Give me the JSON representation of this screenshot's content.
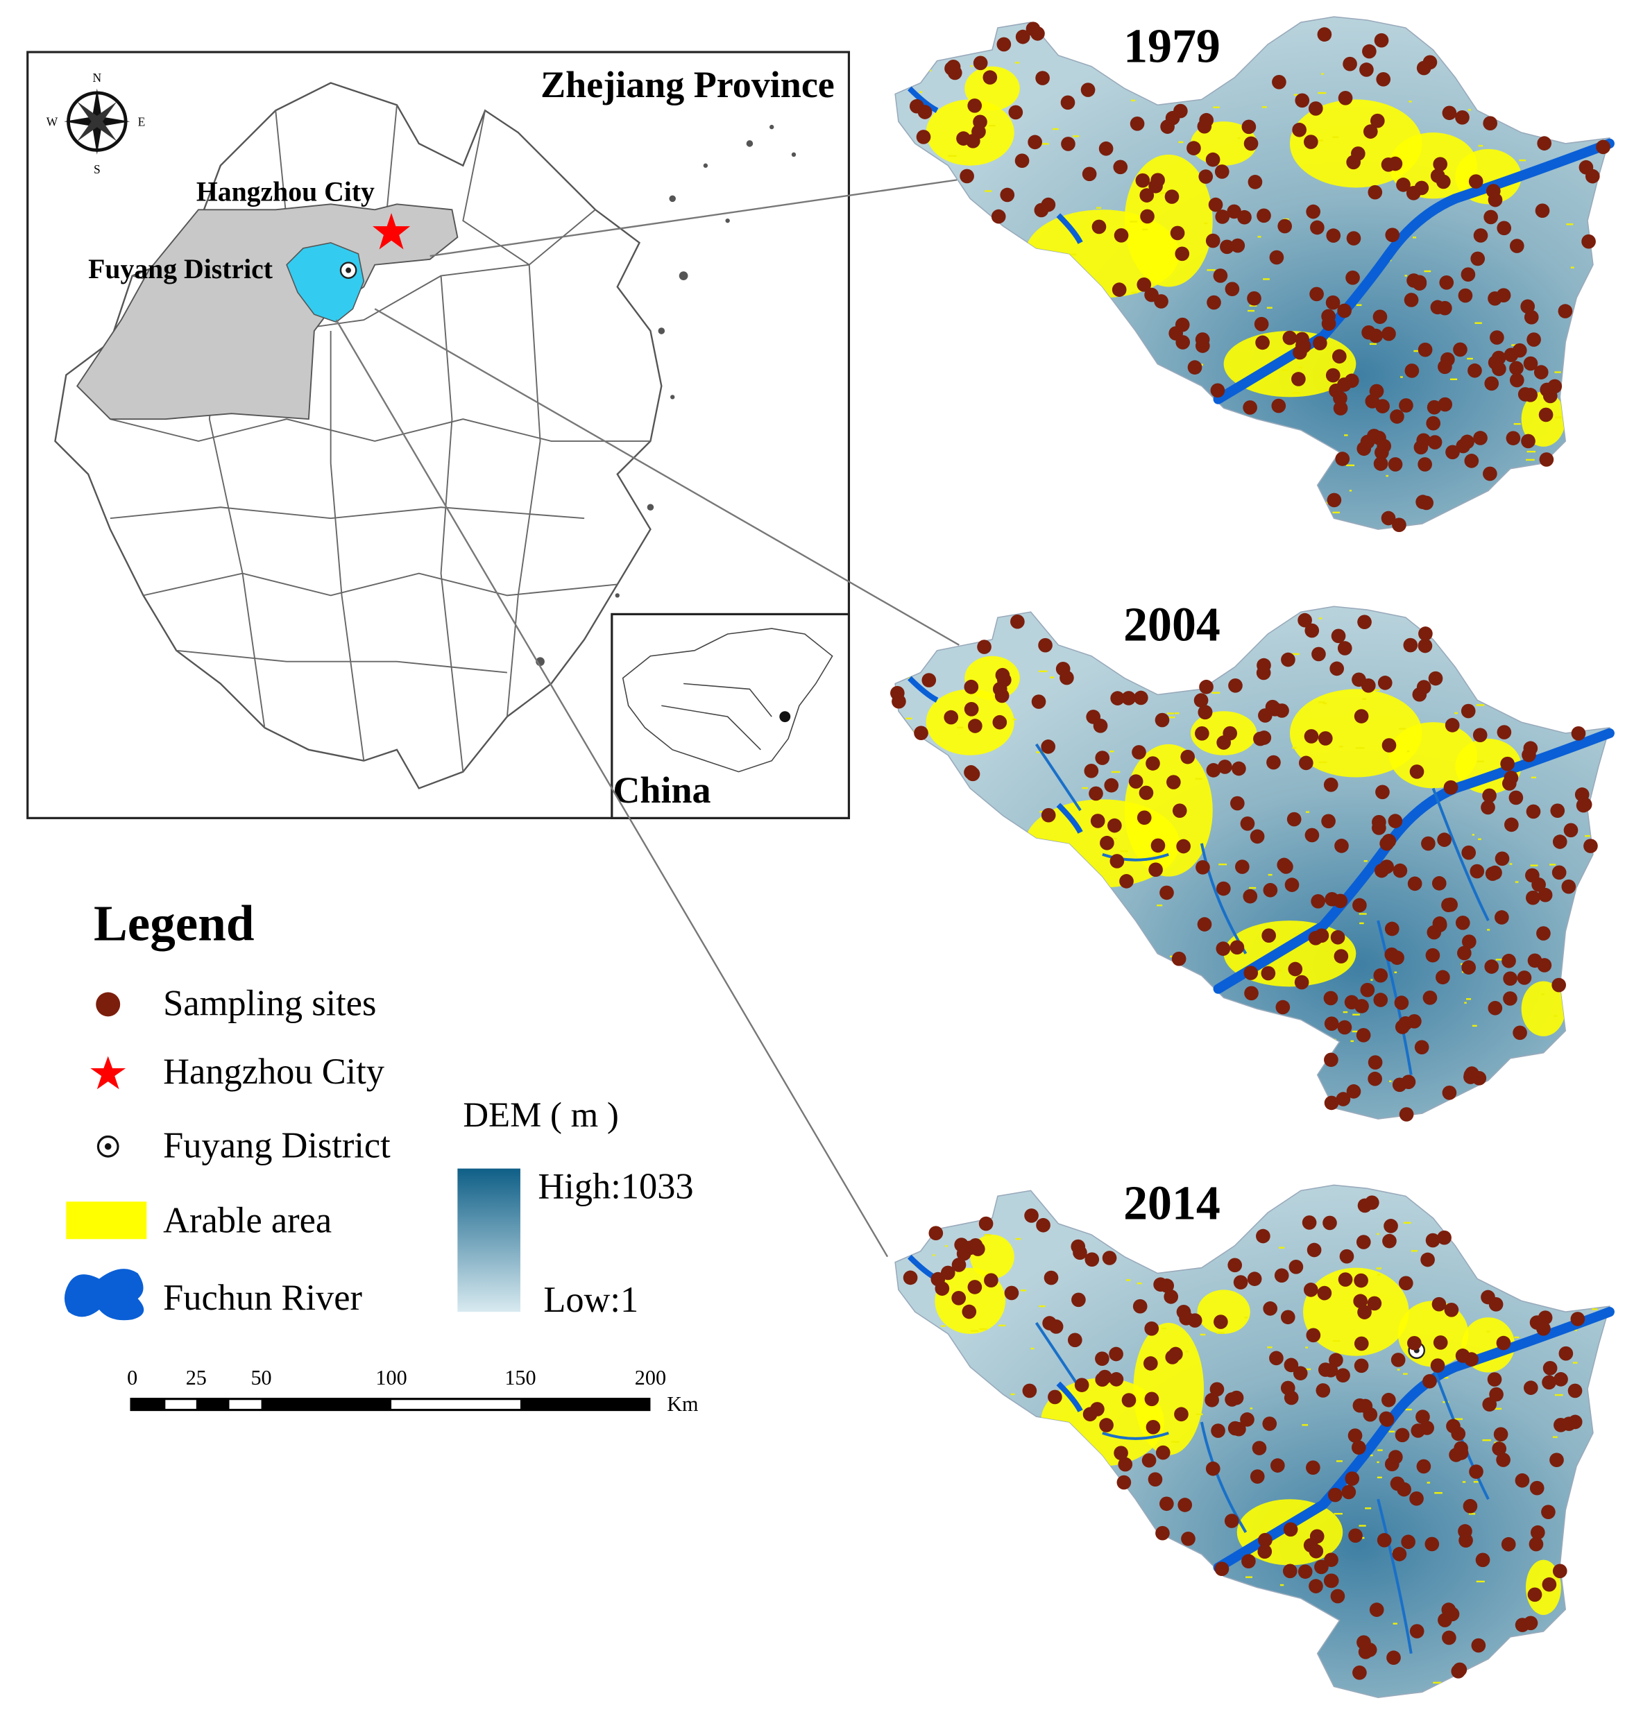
{
  "inset": {
    "title": "Zhejiang Province",
    "hangzhou_label": "Hangzhou City",
    "fuyang_label": "Fuyang District",
    "china_label": "China",
    "compass": {
      "n": "N",
      "s": "S",
      "e": "E",
      "w": "W"
    }
  },
  "maps": [
    {
      "year": "1979"
    },
    {
      "year": "2004"
    },
    {
      "year": "2014"
    }
  ],
  "legend": {
    "title": "Legend",
    "items": [
      {
        "label": "Sampling sites",
        "icon": "brown-dot-icon"
      },
      {
        "label": "Hangzhou City",
        "icon": "red-star-icon"
      },
      {
        "label": "Fuyang District",
        "icon": "dotted-circle-icon"
      },
      {
        "label": "Arable area",
        "icon": "yellow-rect-icon"
      },
      {
        "label": "Fuchun River",
        "icon": "blue-blob-icon"
      }
    ],
    "dem": {
      "title": "DEM ( m )",
      "high": "High:1033",
      "low": "Low:1"
    }
  },
  "scale_bar": {
    "ticks": [
      "0",
      "25",
      "50",
      "100",
      "150",
      "200"
    ],
    "unit": "Km"
  },
  "colors": {
    "sampling": "#7b1e0c",
    "star": "#ff0000",
    "arable": "#ffff00",
    "river": "#0a5fd6",
    "fuyang": "#33ccf0",
    "hangzhou": "#c8c8c8",
    "dem_high": "#0f5f87",
    "dem_low": "#d8eaf0"
  }
}
